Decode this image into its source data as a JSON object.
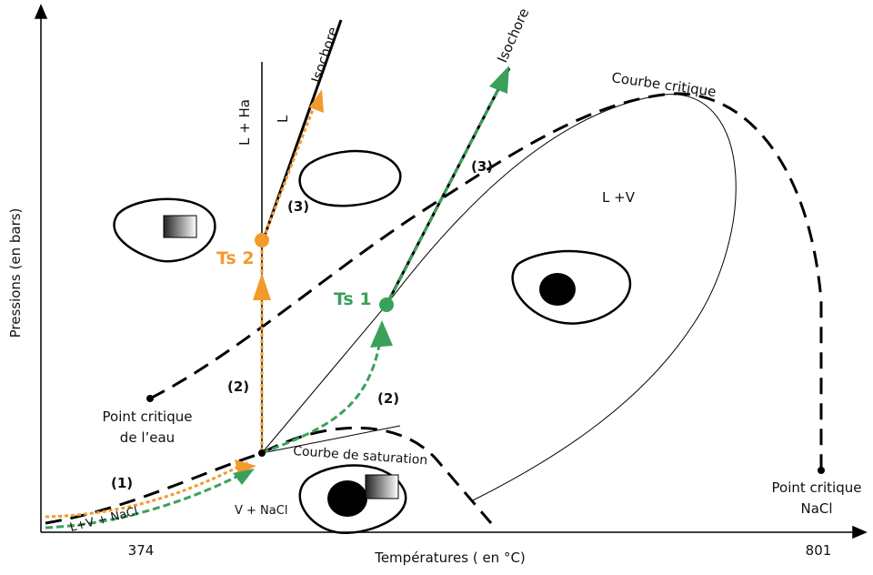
{
  "axes": {
    "x_label": "Températures ( en °C)",
    "y_label": "Pressions (en bars)",
    "x_ticks": [
      "374",
      "801"
    ]
  },
  "labels": {
    "isochore_left": "Isochore",
    "isochore_right": "Isochore",
    "critical_curve": "Courbe critique",
    "l_ha": "L + Ha",
    "l": "L",
    "step3_left": "(3)",
    "step3_right": "(3)",
    "ts2": "Ts 2",
    "ts1": "Ts 1",
    "l_v": "L  +V",
    "step2_left": "(2)",
    "step2_right": "(2)",
    "step1": "(1)",
    "water_point": [
      "Point critique",
      "de l’eau"
    ],
    "l_v_nacl": "L+V + NaCl",
    "v_nacl": "V + NaCl",
    "saturation_curve": "Courbe de saturation",
    "nacl_point": [
      "Point critique",
      "NaCl"
    ]
  }
}
